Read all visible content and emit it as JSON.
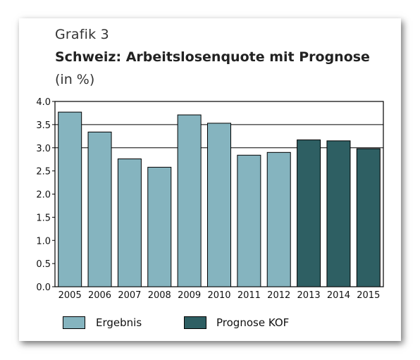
{
  "caption": "Grafik 3",
  "title": "Schweiz: Arbeitslosenquote mit Prognose",
  "subtitle": "(in %)",
  "chart_data": {
    "type": "bar",
    "categories": [
      "2005",
      "2006",
      "2007",
      "2008",
      "2009",
      "2010",
      "2011",
      "2012",
      "2013",
      "2014",
      "2015"
    ],
    "series": [
      {
        "name": "Ergebnis",
        "color": "#85B4BF",
        "values": [
          3.77,
          3.34,
          2.76,
          2.58,
          3.71,
          3.53,
          2.84,
          2.9,
          null,
          null,
          null
        ]
      },
      {
        "name": "Prognose KOF",
        "color": "#2E5F63",
        "values": [
          null,
          null,
          null,
          null,
          null,
          null,
          null,
          null,
          3.17,
          3.15,
          2.98
        ]
      }
    ],
    "ylim": [
      0,
      4.0
    ],
    "yticks": [
      "0.0",
      "0.5",
      "1.0",
      "1.5",
      "2.0",
      "2.5",
      "3.0",
      "3.5",
      "4.0"
    ],
    "gridlines": [
      3.0,
      3.5
    ],
    "legend_placement": "bottom"
  }
}
